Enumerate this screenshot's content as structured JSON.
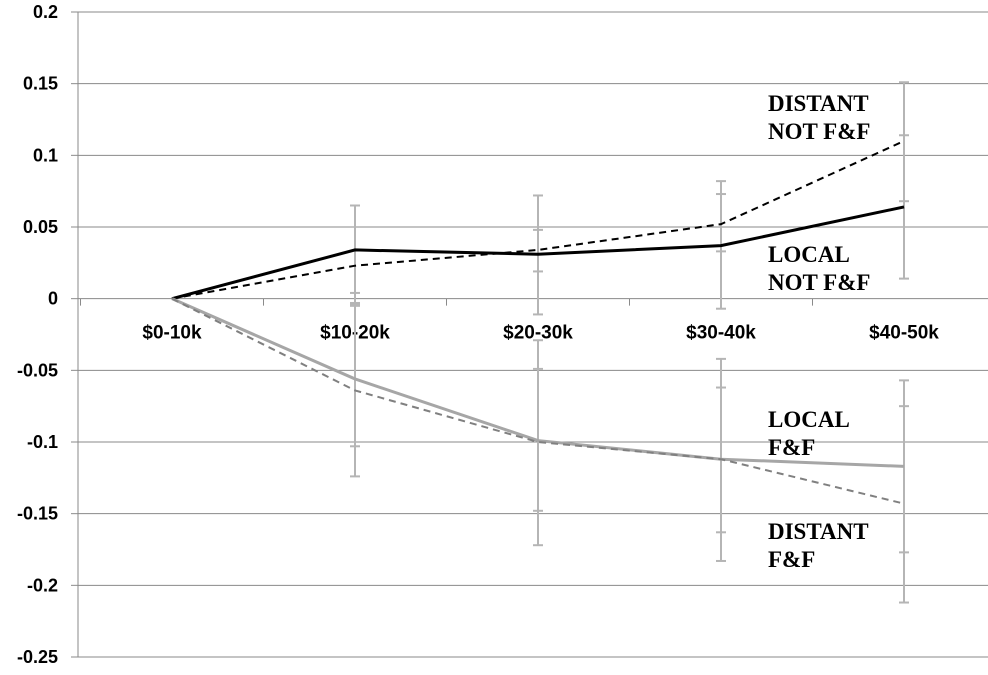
{
  "chart_data": {
    "type": "line",
    "categories": [
      "$0-10k",
      "$10-20k",
      "$20-30k",
      "$30-40k",
      "$40-50k"
    ],
    "ylim": [
      -0.25,
      0.2
    ],
    "yticks": [
      0.2,
      0.15,
      0.1,
      0.05,
      0,
      -0.05,
      -0.1,
      -0.15,
      -0.2,
      -0.25
    ],
    "ytick_labels": [
      "0.2",
      "0.15",
      "0.1",
      "0.05",
      "0",
      "-0.05",
      "-0.1",
      "-0.15",
      "-0.2",
      "-0.25"
    ],
    "grid": true,
    "series": [
      {
        "name": "DISTANT NOT F&F",
        "color": "#000000",
        "style": "dashed",
        "values": [
          0,
          0.023,
          0.034,
          0.052,
          0.11
        ],
        "error_low": [
          null,
          0.004,
          0.019,
          0.033,
          0.068
        ],
        "error_high": [
          null,
          0.065,
          0.048,
          0.073,
          0.151
        ]
      },
      {
        "name": "LOCAL NOT F&F",
        "color": "#000000",
        "style": "solid",
        "values": [
          0,
          0.034,
          0.031,
          0.037,
          0.064
        ],
        "error_low": [
          null,
          -0.005,
          -0.011,
          -0.007,
          0.014
        ],
        "error_high": [
          null,
          0.065,
          0.072,
          0.082,
          0.114
        ]
      },
      {
        "name": "LOCAL F&F",
        "color": "#a6a6a6",
        "style": "solid",
        "values": [
          0,
          -0.056,
          -0.099,
          -0.112,
          -0.117
        ],
        "error_low": [
          null,
          -0.124,
          -0.172,
          -0.183,
          -0.212
        ],
        "error_high": [
          null,
          -0.003,
          -0.029,
          -0.042,
          -0.057
        ]
      },
      {
        "name": "DISTANT F&F",
        "color": "#808080",
        "style": "dashed",
        "values": [
          0,
          -0.064,
          -0.1,
          -0.112,
          -0.143
        ],
        "error_low": [
          null,
          -0.103,
          -0.148,
          -0.163,
          -0.177
        ],
        "error_high": [
          null,
          -0.004,
          -0.049,
          -0.062,
          -0.075
        ]
      }
    ],
    "annotations": [
      {
        "lines": [
          "DISTANT",
          "NOT F&F"
        ],
        "series": "DISTANT NOT F&F"
      },
      {
        "lines": [
          "LOCAL",
          "NOT F&F"
        ],
        "series": "LOCAL NOT F&F"
      },
      {
        "lines": [
          "LOCAL",
          "F&F"
        ],
        "series": "LOCAL F&F"
      },
      {
        "lines": [
          "DISTANT",
          "F&F"
        ],
        "series": "DISTANT F&F"
      }
    ]
  }
}
